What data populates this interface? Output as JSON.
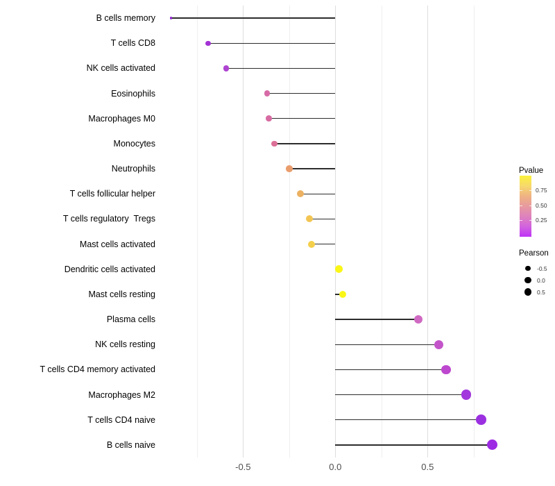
{
  "chart_data": {
    "type": "lollipop",
    "title": "",
    "xlabel": "",
    "ylabel": "",
    "x_axis": {
      "tick_labels": [
        "-0.5",
        "0.0",
        "0.5"
      ],
      "tick_values": [
        -0.5,
        0.0,
        0.5
      ],
      "minor_gridlines": [
        -0.75,
        -0.25,
        0.25,
        0.75
      ],
      "range": [
        -0.96,
        0.92
      ]
    },
    "points": [
      {
        "label": "B cells memory",
        "pearson": -0.89,
        "dot_color": "#8f27cf",
        "dot_size": 3.5
      },
      {
        "label": "T cells CD8",
        "pearson": -0.69,
        "dot_color": "#a232d4",
        "dot_size": 7.5
      },
      {
        "label": "NK cells activated",
        "pearson": -0.59,
        "dot_color": "#ae44d1",
        "dot_size": 8.2
      },
      {
        "label": "Eosinophils",
        "pearson": -0.37,
        "dot_color": "#d76ba7",
        "dot_size": 8.8
      },
      {
        "label": "Macrophages M0",
        "pearson": -0.36,
        "dot_color": "#d76ba2",
        "dot_size": 8.8
      },
      {
        "label": "Monocytes",
        "pearson": -0.33,
        "dot_color": "#dc6f97",
        "dot_size": 8.8
      },
      {
        "label": "Neutrophils",
        "pearson": -0.25,
        "dot_color": "#ea9d6c",
        "dot_size": 9.4
      },
      {
        "label": "T cells follicular helper",
        "pearson": -0.19,
        "dot_color": "#ecb161",
        "dot_size": 10
      },
      {
        "label": "T cells regulatory  Tregs",
        "pearson": -0.14,
        "dot_color": "#f2c553",
        "dot_size": 10
      },
      {
        "label": "Mast cells activated",
        "pearson": -0.13,
        "dot_color": "#f4cf4b",
        "dot_size": 10
      },
      {
        "label": "Dendritic cells activated",
        "pearson": 0.02,
        "dot_color": "#faf617",
        "dot_size": 10.8
      },
      {
        "label": "Mast cells resting",
        "pearson": 0.04,
        "dot_color": "#faf617",
        "dot_size": 10.8
      },
      {
        "label": "Plasma cells",
        "pearson": 0.45,
        "dot_color": "#cf69c2",
        "dot_size": 12.4
      },
      {
        "label": "NK cells resting",
        "pearson": 0.56,
        "dot_color": "#c354c9",
        "dot_size": 13.2
      },
      {
        "label": "T cells CD4 memory activated",
        "pearson": 0.6,
        "dot_color": "#bd47ce",
        "dot_size": 13.5
      },
      {
        "label": "Macrophages M2",
        "pearson": 0.71,
        "dot_color": "#a137dc",
        "dot_size": 14.2
      },
      {
        "label": "T cells CD4 naive",
        "pearson": 0.79,
        "dot_color": "#9b30e1",
        "dot_size": 14.6
      },
      {
        "label": "B cells naive",
        "pearson": 0.85,
        "dot_color": "#9d2be3",
        "dot_size": 15
      }
    ],
    "legends": {
      "pvalue": {
        "title": "Pvalue",
        "tick_labels": [
          "0.75",
          "0.50",
          "0.25"
        ],
        "gradient_top_to_bottom": [
          "#fbf23b",
          "#f6d96c",
          "#efb383",
          "#e79a9e",
          "#de82bc",
          "#d263df",
          "#be33f6"
        ]
      },
      "pearson": {
        "title": "Pearson",
        "entries": [
          {
            "label": "-0.5",
            "size": 7.3
          },
          {
            "label": "0.0",
            "size": 9.3
          },
          {
            "label": "0.5",
            "size": 10.7
          }
        ],
        "dot_color": "#000000"
      }
    },
    "style": {
      "stick_color": "#2c2c2c",
      "major_grid": "#dedede",
      "minor_grid": "#efefef",
      "axis_text": "#4d4d4d",
      "label_text": "#000000",
      "background": "#ffffff"
    },
    "legend_position": "right",
    "grid": "vertical-only"
  }
}
